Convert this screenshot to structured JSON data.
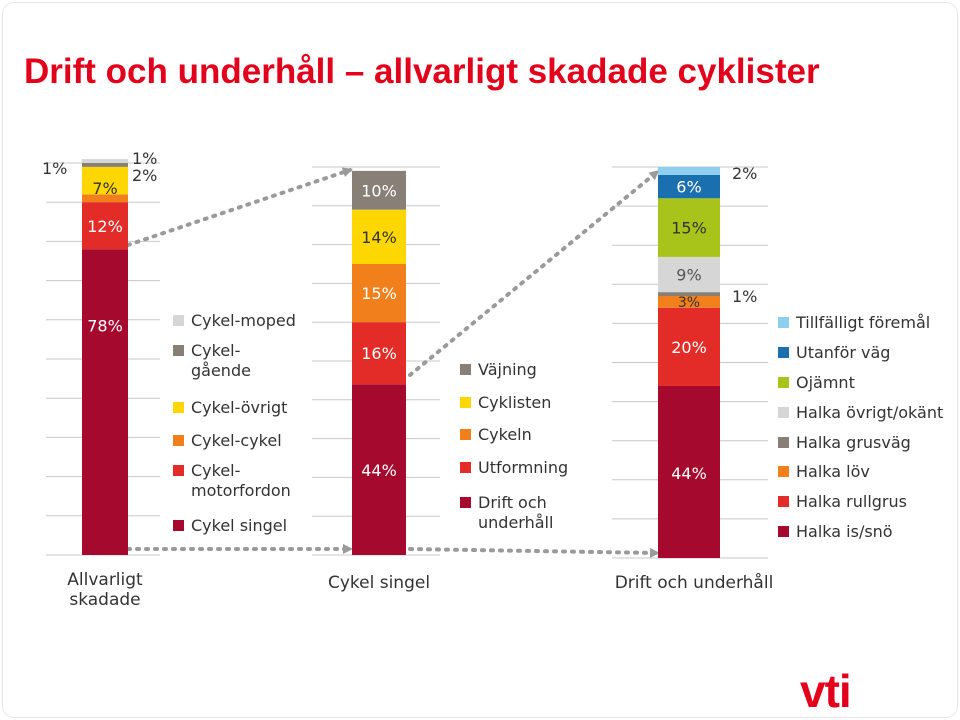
{
  "slide": {
    "title": "Drift och underhåll – allvarligt skadade cyklister",
    "brand": "vti"
  },
  "colors": {
    "text": "#333333",
    "grid": "#c8c8c8",
    "arrow": "#9a9a9a",
    "red_accent": "#e3001b"
  },
  "chart_data": [
    {
      "type": "stacked-bar",
      "category": "Allvarligt\nskadade",
      "ylim": [
        0,
        100
      ],
      "grid": true,
      "legend": "right",
      "series": [
        {
          "name": "Cykel singel",
          "value": 78,
          "label": "78%",
          "color": "#a50a2e"
        },
        {
          "name": "Cykel-\nmotorfordon",
          "value": 12,
          "label": "12%",
          "color": "#e32b28"
        },
        {
          "name": "Cykel-cykel",
          "value": 2,
          "label": "2%",
          "color": "#f07f1c"
        },
        {
          "name": "Cykel-övrigt",
          "value": 7,
          "label": "7%",
          "color": "#ffd700"
        },
        {
          "name": "Cykel-\ngående",
          "value": 1,
          "label": "1%",
          "color": "#888076"
        },
        {
          "name": "Cykel-moped",
          "value": 1,
          "label": "1%",
          "color": "#d6d6d6"
        }
      ]
    },
    {
      "type": "stacked-bar",
      "category": "Cykel singel",
      "ylim": [
        0,
        100
      ],
      "grid": true,
      "legend": "right",
      "series": [
        {
          "name": "Drift och\nunderhåll",
          "value": 44,
          "label": "44%",
          "color": "#a50a2e"
        },
        {
          "name": "Utformning",
          "value": 16,
          "label": "16%",
          "color": "#e32b28"
        },
        {
          "name": "Cykeln",
          "value": 15,
          "label": "15%",
          "color": "#f07f1c"
        },
        {
          "name": "Cyklisten",
          "value": 14,
          "label": "14%",
          "color": "#ffd700"
        },
        {
          "name": "Väjning",
          "value": 10,
          "label": "10%",
          "color": "#888076"
        }
      ]
    },
    {
      "type": "stacked-bar",
      "category": "Drift och underhåll",
      "ylim": [
        0,
        100
      ],
      "grid": true,
      "legend": "right",
      "series": [
        {
          "name": "Halka is/snö",
          "value": 44,
          "label": "44%",
          "color": "#a50a2e"
        },
        {
          "name": "Halka rullgrus",
          "value": 20,
          "label": "20%",
          "color": "#e32b28"
        },
        {
          "name": "Halka löv",
          "value": 3,
          "label": "3%",
          "color": "#f07f1c"
        },
        {
          "name": "Halka grusväg",
          "value": 1,
          "label": "1%",
          "color": "#888076"
        },
        {
          "name": "Halka övrigt/okänt",
          "value": 9,
          "label": "9%",
          "color": "#d6d6d6"
        },
        {
          "name": "Ojämnt",
          "value": 15,
          "label": "15%",
          "color": "#a8c41a"
        },
        {
          "name": "Utanför väg",
          "value": 6,
          "label": "6%",
          "color": "#1a6fae"
        },
        {
          "name": "Tillfälligt föremål",
          "value": 2,
          "label": "2%",
          "color": "#8ecfee"
        }
      ]
    }
  ]
}
